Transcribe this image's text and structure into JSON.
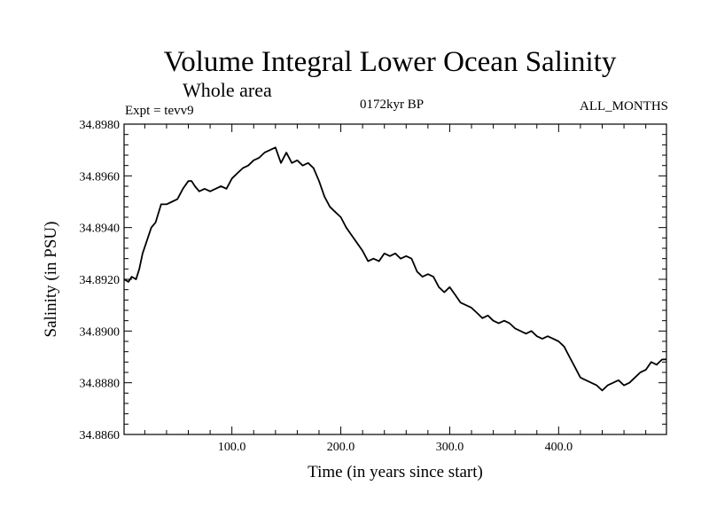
{
  "chart_data": {
    "type": "line",
    "title": "Volume Integral Lower Ocean Salinity",
    "subtitle": "Whole area",
    "header_left": "Expt = tevv9",
    "header_center": "0172kyr BP",
    "header_right": "ALL_MONTHS",
    "xlabel": "Time (in years since start)",
    "ylabel": "Salinity (in PSU)",
    "xlim": [
      1,
      499
    ],
    "ylim": [
      34.886,
      34.898
    ],
    "xticks": [
      100,
      200,
      300,
      400
    ],
    "xtick_labels": [
      "100.0",
      "200.0",
      "300.0",
      "400.0"
    ],
    "yticks": [
      34.886,
      34.888,
      34.89,
      34.892,
      34.894,
      34.896,
      34.898
    ],
    "ytick_labels": [
      "34.8860",
      "34.8880",
      "34.8900",
      "34.8920",
      "34.8940",
      "34.8960",
      "34.8980"
    ],
    "grid": false,
    "series": [
      {
        "line_color": "#000000",
        "x": [
          1,
          5,
          8,
          12,
          15,
          18,
          22,
          26,
          30,
          35,
          40,
          45,
          50,
          55,
          60,
          63,
          66,
          70,
          75,
          80,
          85,
          90,
          95,
          100,
          105,
          110,
          115,
          120,
          125,
          130,
          135,
          140,
          145,
          150,
          155,
          160,
          165,
          170,
          175,
          180,
          185,
          190,
          195,
          200,
          205,
          210,
          215,
          220,
          225,
          230,
          235,
          240,
          245,
          250,
          255,
          260,
          265,
          270,
          275,
          280,
          285,
          290,
          295,
          300,
          305,
          310,
          315,
          320,
          325,
          330,
          335,
          340,
          345,
          350,
          355,
          360,
          365,
          370,
          375,
          380,
          385,
          390,
          395,
          400,
          405,
          410,
          415,
          420,
          425,
          430,
          435,
          440,
          445,
          450,
          455,
          460,
          465,
          470,
          475,
          480,
          485,
          490,
          495,
          499
        ],
        "y": [
          34.892,
          34.8919,
          34.8921,
          34.892,
          34.8924,
          34.893,
          34.8935,
          34.894,
          34.8942,
          34.8949,
          34.8949,
          34.895,
          34.8951,
          34.8955,
          34.8958,
          34.8958,
          34.8956,
          34.8954,
          34.8955,
          34.8954,
          34.8955,
          34.8956,
          34.8955,
          34.8959,
          34.8961,
          34.8963,
          34.8964,
          34.8966,
          34.8967,
          34.8969,
          34.897,
          34.8971,
          34.8965,
          34.8969,
          34.8965,
          34.8966,
          34.8964,
          34.8965,
          34.8963,
          34.8958,
          34.8952,
          34.8948,
          34.8946,
          34.8944,
          34.894,
          34.8937,
          34.8934,
          34.8931,
          34.8927,
          34.8928,
          34.8927,
          34.893,
          34.8929,
          34.893,
          34.8928,
          34.8929,
          34.8928,
          34.8923,
          34.8921,
          34.8922,
          34.8921,
          34.8917,
          34.8915,
          34.8917,
          34.8914,
          34.8911,
          34.891,
          34.8909,
          34.8907,
          34.8905,
          34.8906,
          34.8904,
          34.8903,
          34.8904,
          34.8903,
          34.8901,
          34.89,
          34.8899,
          34.89,
          34.8898,
          34.8897,
          34.8898,
          34.8897,
          34.8896,
          34.8894,
          34.889,
          34.8886,
          34.8882,
          34.8881,
          34.888,
          34.8879,
          34.8877,
          34.8879,
          34.888,
          34.8881,
          34.8879,
          34.888,
          34.8882,
          34.8884,
          34.8885,
          34.8888,
          34.8887,
          34.8889,
          34.8889
        ]
      }
    ]
  }
}
